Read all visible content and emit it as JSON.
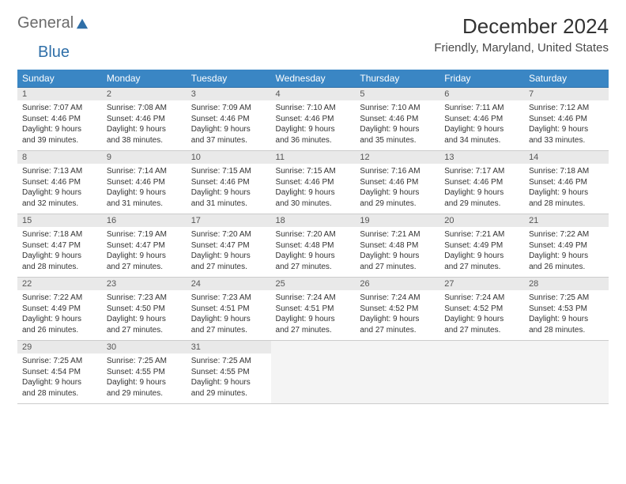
{
  "brand": {
    "part1": "General",
    "part2": "Blue"
  },
  "title": "December 2024",
  "location": "Friendly, Maryland, United States",
  "colors": {
    "header_bg": "#3a86c4",
    "header_text": "#ffffff",
    "row_border_top": "#2f6fa8",
    "daynum_bg": "#e9e9e9",
    "body_text": "#333333",
    "brand_gray": "#6b6b6b",
    "brand_blue": "#2f6fa8"
  },
  "typography": {
    "title_fontsize": 26,
    "subtitle_fontsize": 15,
    "dayhead_fontsize": 12,
    "cell_fontsize": 10
  },
  "calendar": {
    "type": "table",
    "day_headers": [
      "Sunday",
      "Monday",
      "Tuesday",
      "Wednesday",
      "Thursday",
      "Friday",
      "Saturday"
    ],
    "weeks": [
      [
        {
          "n": "1",
          "sr": "7:07 AM",
          "ss": "4:46 PM",
          "dh": "9",
          "dm": "39"
        },
        {
          "n": "2",
          "sr": "7:08 AM",
          "ss": "4:46 PM",
          "dh": "9",
          "dm": "38"
        },
        {
          "n": "3",
          "sr": "7:09 AM",
          "ss": "4:46 PM",
          "dh": "9",
          "dm": "37"
        },
        {
          "n": "4",
          "sr": "7:10 AM",
          "ss": "4:46 PM",
          "dh": "9",
          "dm": "36"
        },
        {
          "n": "5",
          "sr": "7:10 AM",
          "ss": "4:46 PM",
          "dh": "9",
          "dm": "35"
        },
        {
          "n": "6",
          "sr": "7:11 AM",
          "ss": "4:46 PM",
          "dh": "9",
          "dm": "34"
        },
        {
          "n": "7",
          "sr": "7:12 AM",
          "ss": "4:46 PM",
          "dh": "9",
          "dm": "33"
        }
      ],
      [
        {
          "n": "8",
          "sr": "7:13 AM",
          "ss": "4:46 PM",
          "dh": "9",
          "dm": "32"
        },
        {
          "n": "9",
          "sr": "7:14 AM",
          "ss": "4:46 PM",
          "dh": "9",
          "dm": "31"
        },
        {
          "n": "10",
          "sr": "7:15 AM",
          "ss": "4:46 PM",
          "dh": "9",
          "dm": "31"
        },
        {
          "n": "11",
          "sr": "7:15 AM",
          "ss": "4:46 PM",
          "dh": "9",
          "dm": "30"
        },
        {
          "n": "12",
          "sr": "7:16 AM",
          "ss": "4:46 PM",
          "dh": "9",
          "dm": "29"
        },
        {
          "n": "13",
          "sr": "7:17 AM",
          "ss": "4:46 PM",
          "dh": "9",
          "dm": "29"
        },
        {
          "n": "14",
          "sr": "7:18 AM",
          "ss": "4:46 PM",
          "dh": "9",
          "dm": "28"
        }
      ],
      [
        {
          "n": "15",
          "sr": "7:18 AM",
          "ss": "4:47 PM",
          "dh": "9",
          "dm": "28"
        },
        {
          "n": "16",
          "sr": "7:19 AM",
          "ss": "4:47 PM",
          "dh": "9",
          "dm": "27"
        },
        {
          "n": "17",
          "sr": "7:20 AM",
          "ss": "4:47 PM",
          "dh": "9",
          "dm": "27"
        },
        {
          "n": "18",
          "sr": "7:20 AM",
          "ss": "4:48 PM",
          "dh": "9",
          "dm": "27"
        },
        {
          "n": "19",
          "sr": "7:21 AM",
          "ss": "4:48 PM",
          "dh": "9",
          "dm": "27"
        },
        {
          "n": "20",
          "sr": "7:21 AM",
          "ss": "4:49 PM",
          "dh": "9",
          "dm": "27"
        },
        {
          "n": "21",
          "sr": "7:22 AM",
          "ss": "4:49 PM",
          "dh": "9",
          "dm": "26"
        }
      ],
      [
        {
          "n": "22",
          "sr": "7:22 AM",
          "ss": "4:49 PM",
          "dh": "9",
          "dm": "26"
        },
        {
          "n": "23",
          "sr": "7:23 AM",
          "ss": "4:50 PM",
          "dh": "9",
          "dm": "27"
        },
        {
          "n": "24",
          "sr": "7:23 AM",
          "ss": "4:51 PM",
          "dh": "9",
          "dm": "27"
        },
        {
          "n": "25",
          "sr": "7:24 AM",
          "ss": "4:51 PM",
          "dh": "9",
          "dm": "27"
        },
        {
          "n": "26",
          "sr": "7:24 AM",
          "ss": "4:52 PM",
          "dh": "9",
          "dm": "27"
        },
        {
          "n": "27",
          "sr": "7:24 AM",
          "ss": "4:52 PM",
          "dh": "9",
          "dm": "27"
        },
        {
          "n": "28",
          "sr": "7:25 AM",
          "ss": "4:53 PM",
          "dh": "9",
          "dm": "28"
        }
      ],
      [
        {
          "n": "29",
          "sr": "7:25 AM",
          "ss": "4:54 PM",
          "dh": "9",
          "dm": "28"
        },
        {
          "n": "30",
          "sr": "7:25 AM",
          "ss": "4:55 PM",
          "dh": "9",
          "dm": "29"
        },
        {
          "n": "31",
          "sr": "7:25 AM",
          "ss": "4:55 PM",
          "dh": "9",
          "dm": "29"
        },
        null,
        null,
        null,
        null
      ]
    ]
  },
  "labels": {
    "sunrise_prefix": "Sunrise: ",
    "sunset_prefix": "Sunset: ",
    "daylight_prefix": "Daylight: ",
    "hours_word": " hours",
    "and_word": "and ",
    "minutes_word": " minutes."
  }
}
